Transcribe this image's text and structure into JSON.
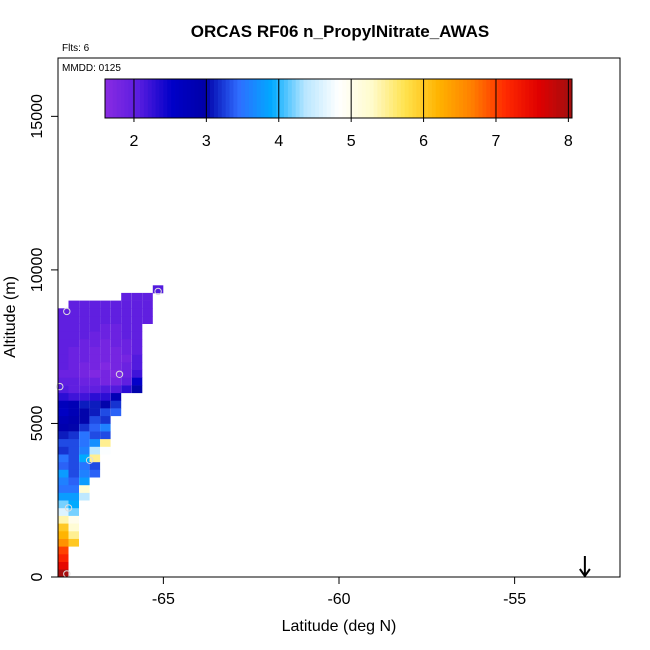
{
  "chart_data": {
    "type": "heatmap",
    "title": "ORCAS RF06 n_PropylNitrate_AWAS",
    "xlabel": "Latitude (deg N)",
    "ylabel": "Altitude (m)",
    "xlim": [
      -68.0,
      -52.0
    ],
    "ylim": [
      0,
      16900
    ],
    "x_ticks": [
      -65,
      -60,
      -55
    ],
    "x_tick_labels": [
      "-65",
      "-60",
      "-55"
    ],
    "y_ticks": [
      0,
      5000,
      10000,
      15000
    ],
    "y_tick_labels": [
      "0",
      "5000",
      "10000",
      "15000"
    ],
    "flights_note": "Flts: 6",
    "date_note": "MMDD: 0125",
    "colorbar": {
      "min": 1.6,
      "max": 8.05,
      "ticks": [
        2,
        3,
        4,
        5,
        6,
        7,
        8
      ],
      "tick_labels": [
        "2",
        "3",
        "4",
        "5",
        "6",
        "7",
        "8"
      ],
      "palette": [
        "#8a2be2",
        "#5a1de0",
        "#0000c8",
        "#0000a8",
        "#2f6cff",
        "#00aaff",
        "#b8e6ff",
        "#ffffff",
        "#fffbcc",
        "#ffe24d",
        "#ffb300",
        "#ff7f00",
        "#ff2a00",
        "#e00000",
        "#a01010"
      ]
    },
    "grid_cell": {
      "dx": 0.3,
      "dy": 250
    },
    "profile": [
      [
        0,
        -67.85,
        8.0
      ],
      [
        250,
        -67.85,
        7.5
      ],
      [
        500,
        -67.85,
        7.2
      ],
      [
        750,
        -67.85,
        7.0
      ],
      [
        1000,
        -67.85,
        6.5
      ],
      [
        1000,
        -67.55,
        6.0
      ],
      [
        1250,
        -67.85,
        6.2
      ],
      [
        1250,
        -67.55,
        5.5
      ],
      [
        1500,
        -67.85,
        6.0
      ],
      [
        1500,
        -67.55,
        5.2
      ],
      [
        1750,
        -67.85,
        5.4
      ],
      [
        1750,
        -67.55,
        5.0
      ],
      [
        2000,
        -67.85,
        4.6
      ],
      [
        2000,
        -67.55,
        4.2
      ],
      [
        2250,
        -67.85,
        4.2
      ],
      [
        2250,
        -67.55,
        3.9
      ],
      [
        2500,
        -67.85,
        3.8
      ],
      [
        2500,
        -67.55,
        3.8
      ],
      [
        2500,
        -67.25,
        4.4
      ],
      [
        2750,
        -67.85,
        3.5
      ],
      [
        2750,
        -67.55,
        3.5
      ],
      [
        2750,
        -67.25,
        5.2
      ],
      [
        3000,
        -67.85,
        3.6
      ],
      [
        3000,
        -67.55,
        3.4
      ],
      [
        3000,
        -67.25,
        3.8
      ],
      [
        3250,
        -67.85,
        3.8
      ],
      [
        3250,
        -67.55,
        3.3
      ],
      [
        3250,
        -67.25,
        3.6
      ],
      [
        3250,
        -66.95,
        3.4
      ],
      [
        3500,
        -67.85,
        3.4
      ],
      [
        3500,
        -67.55,
        3.3
      ],
      [
        3500,
        -67.25,
        3.5
      ],
      [
        3500,
        -66.95,
        3.3
      ],
      [
        3750,
        -67.85,
        3.5
      ],
      [
        3750,
        -67.55,
        3.3
      ],
      [
        3750,
        -67.25,
        3.9
      ],
      [
        3750,
        -66.95,
        5.5
      ],
      [
        4000,
        -67.85,
        3.2
      ],
      [
        4000,
        -67.55,
        3.3
      ],
      [
        4000,
        -67.25,
        3.6
      ],
      [
        4000,
        -66.95,
        4.4
      ],
      [
        4000,
        -66.65,
        4.8
      ],
      [
        4250,
        -67.85,
        3.3
      ],
      [
        4250,
        -67.55,
        3.3
      ],
      [
        4250,
        -67.25,
        3.5
      ],
      [
        4250,
        -66.95,
        3.7
      ],
      [
        4250,
        -66.65,
        5.5
      ],
      [
        4500,
        -67.85,
        3.1
      ],
      [
        4500,
        -67.55,
        3.2
      ],
      [
        4500,
        -67.25,
        3.5
      ],
      [
        4500,
        -66.95,
        3.3
      ],
      [
        4500,
        -66.65,
        3.3
      ],
      [
        4750,
        -67.85,
        2.9
      ],
      [
        4750,
        -67.55,
        3.0
      ],
      [
        4750,
        -67.25,
        3.2
      ],
      [
        4750,
        -66.95,
        3.4
      ],
      [
        4750,
        -66.65,
        3.6
      ],
      [
        5000,
        -67.85,
        2.8
      ],
      [
        5000,
        -67.55,
        2.9
      ],
      [
        5000,
        -67.25,
        3.0
      ],
      [
        5000,
        -66.95,
        3.3
      ],
      [
        5000,
        -66.65,
        3.2
      ],
      [
        5250,
        -67.85,
        2.6
      ],
      [
        5250,
        -67.55,
        2.8
      ],
      [
        5250,
        -67.25,
        3.0
      ],
      [
        5250,
        -66.95,
        3.1
      ],
      [
        5250,
        -66.65,
        3.3
      ],
      [
        5250,
        -66.35,
        3.4
      ],
      [
        5500,
        -67.85,
        2.7
      ],
      [
        5500,
        -67.55,
        2.8
      ],
      [
        5500,
        -67.25,
        3.1
      ],
      [
        5500,
        -66.95,
        3.1
      ],
      [
        5500,
        -66.65,
        3.0
      ],
      [
        5500,
        -66.35,
        3.2
      ],
      [
        5750,
        -67.85,
        2.3
      ],
      [
        5750,
        -67.55,
        2.2
      ],
      [
        5750,
        -67.25,
        2.2
      ],
      [
        5750,
        -66.95,
        2.3
      ],
      [
        5750,
        -66.65,
        2.3
      ],
      [
        5750,
        -66.35,
        2.8
      ],
      [
        6000,
        -67.85,
        2.1
      ],
      [
        6000,
        -67.55,
        2.0
      ],
      [
        6000,
        -67.25,
        2.0
      ],
      [
        6000,
        -66.95,
        2.0
      ],
      [
        6000,
        -66.65,
        2.1
      ],
      [
        6000,
        -66.35,
        2.1
      ],
      [
        6000,
        -66.05,
        2.3
      ],
      [
        6000,
        -65.75,
        3.0
      ],
      [
        6250,
        -67.85,
        2.0
      ],
      [
        6250,
        -67.55,
        2.0
      ],
      [
        6250,
        -67.25,
        1.9
      ],
      [
        6250,
        -66.95,
        1.9
      ],
      [
        6250,
        -66.65,
        1.8
      ],
      [
        6250,
        -66.35,
        1.8
      ],
      [
        6250,
        -66.05,
        2.0
      ],
      [
        6250,
        -65.75,
        2.5
      ],
      [
        6500,
        -67.85,
        1.9
      ],
      [
        6500,
        -67.55,
        1.9
      ],
      [
        6500,
        -67.25,
        1.8
      ],
      [
        6500,
        -66.95,
        1.7
      ],
      [
        6500,
        -66.65,
        1.8
      ],
      [
        6500,
        -66.35,
        1.7
      ],
      [
        6500,
        -66.05,
        1.9
      ],
      [
        6500,
        -65.75,
        2.2
      ],
      [
        6750,
        -67.85,
        2.0
      ],
      [
        6750,
        -67.55,
        1.9
      ],
      [
        6750,
        -67.25,
        1.8
      ],
      [
        6750,
        -66.95,
        1.8
      ],
      [
        6750,
        -66.65,
        1.7
      ],
      [
        6750,
        -66.35,
        1.8
      ],
      [
        6750,
        -66.05,
        1.9
      ],
      [
        6750,
        -65.75,
        2.1
      ],
      [
        7000,
        -67.85,
        2.0
      ],
      [
        7000,
        -67.55,
        1.9
      ],
      [
        7000,
        -67.25,
        1.9
      ],
      [
        7000,
        -66.95,
        1.8
      ],
      [
        7000,
        -66.65,
        1.8
      ],
      [
        7000,
        -66.35,
        1.8
      ],
      [
        7000,
        -66.05,
        1.8
      ],
      [
        7000,
        -65.75,
        2.1
      ],
      [
        7250,
        -67.85,
        2.0
      ],
      [
        7250,
        -67.55,
        1.9
      ],
      [
        7250,
        -67.25,
        1.9
      ],
      [
        7250,
        -66.95,
        1.8
      ],
      [
        7250,
        -66.65,
        1.8
      ],
      [
        7250,
        -66.35,
        1.8
      ],
      [
        7250,
        -66.05,
        1.9
      ],
      [
        7250,
        -65.75,
        2.0
      ],
      [
        7500,
        -67.85,
        2.0
      ],
      [
        7500,
        -67.55,
        2.0
      ],
      [
        7500,
        -67.25,
        1.9
      ],
      [
        7500,
        -66.95,
        1.9
      ],
      [
        7500,
        -66.65,
        1.8
      ],
      [
        7500,
        -66.35,
        1.9
      ],
      [
        7500,
        -66.05,
        1.9
      ],
      [
        7500,
        -65.75,
        2.0
      ],
      [
        7750,
        -67.85,
        2.0
      ],
      [
        7750,
        -67.55,
        2.0
      ],
      [
        7750,
        -67.25,
        2.0
      ],
      [
        7750,
        -66.95,
        1.9
      ],
      [
        7750,
        -66.65,
        1.9
      ],
      [
        7750,
        -66.35,
        1.9
      ],
      [
        7750,
        -66.05,
        2.0
      ],
      [
        7750,
        -65.75,
        2.0
      ],
      [
        8000,
        -67.85,
        2.0
      ],
      [
        8000,
        -67.55,
        2.0
      ],
      [
        8000,
        -67.25,
        2.0
      ],
      [
        8000,
        -66.95,
        2.0
      ],
      [
        8000,
        -66.65,
        1.9
      ],
      [
        8000,
        -66.35,
        1.9
      ],
      [
        8000,
        -66.05,
        2.0
      ],
      [
        8000,
        -65.75,
        2.0
      ],
      [
        8250,
        -67.85,
        2.0
      ],
      [
        8250,
        -67.55,
        2.0
      ],
      [
        8250,
        -67.25,
        2.0
      ],
      [
        8250,
        -66.95,
        2.0
      ],
      [
        8250,
        -66.65,
        2.0
      ],
      [
        8250,
        -66.35,
        2.0
      ],
      [
        8250,
        -66.05,
        2.0
      ],
      [
        8250,
        -65.75,
        2.0
      ],
      [
        8250,
        -65.45,
        2.0
      ],
      [
        8500,
        -67.85,
        2.0
      ],
      [
        8500,
        -67.55,
        2.0
      ],
      [
        8500,
        -67.25,
        2.0
      ],
      [
        8500,
        -66.95,
        2.0
      ],
      [
        8500,
        -66.65,
        2.0
      ],
      [
        8500,
        -66.35,
        2.0
      ],
      [
        8500,
        -66.05,
        2.0
      ],
      [
        8500,
        -65.75,
        2.0
      ],
      [
        8500,
        -65.45,
        2.0
      ],
      [
        8750,
        -67.55,
        2.0
      ],
      [
        8750,
        -67.25,
        2.0
      ],
      [
        8750,
        -66.95,
        2.0
      ],
      [
        8750,
        -66.65,
        2.0
      ],
      [
        8750,
        -66.35,
        2.0
      ],
      [
        8750,
        -66.05,
        2.0
      ],
      [
        8750,
        -65.75,
        2.0
      ],
      [
        8750,
        -65.45,
        2.0
      ],
      [
        9000,
        -66.05,
        2.0
      ],
      [
        9000,
        -65.75,
        2.0
      ],
      [
        9000,
        -65.45,
        2.0
      ],
      [
        9250,
        -65.15,
        2.1
      ]
    ],
    "sample_markers": [
      [
        100,
        -67.75
      ],
      [
        2250,
        -67.7
      ],
      [
        3800,
        -67.1
      ],
      [
        6600,
        -66.25
      ],
      [
        6200,
        -67.95
      ],
      [
        8650,
        -67.75
      ],
      [
        9300,
        -65.15
      ]
    ],
    "arrow_marker": {
      "lat": -53.0,
      "alt": 0
    }
  }
}
